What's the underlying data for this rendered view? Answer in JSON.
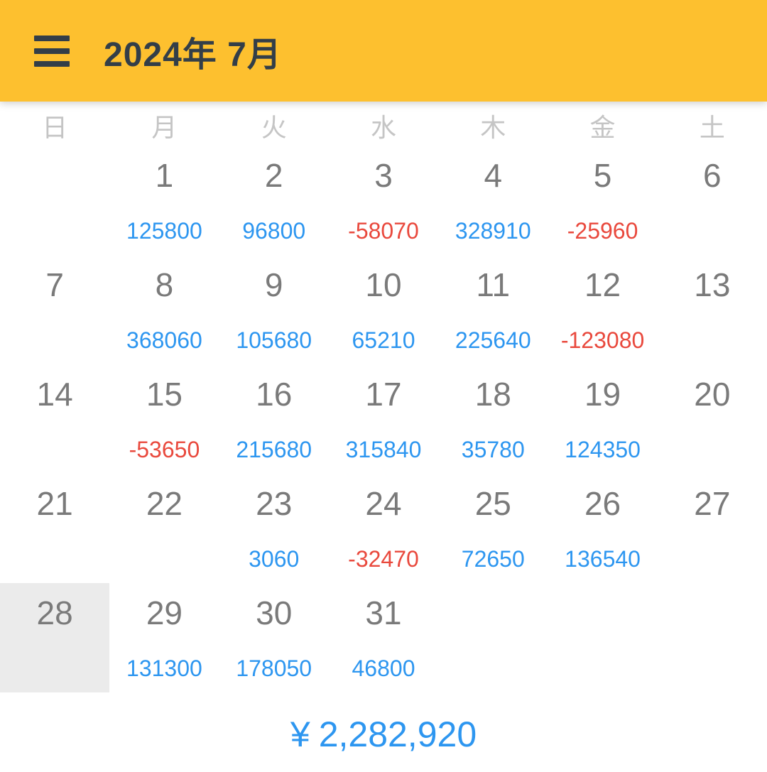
{
  "app_bar": {
    "title": "2024年 7月"
  },
  "weekday_headers": [
    "日",
    "月",
    "火",
    "水",
    "木",
    "金",
    "土"
  ],
  "weeks": [
    [
      {
        "day": ""
      },
      {
        "day": "1",
        "value": "125800",
        "sign": "positive"
      },
      {
        "day": "2",
        "value": "96800",
        "sign": "positive"
      },
      {
        "day": "3",
        "value": "-58070",
        "sign": "negative"
      },
      {
        "day": "4",
        "value": "328910",
        "sign": "positive"
      },
      {
        "day": "5",
        "value": "-25960",
        "sign": "negative"
      },
      {
        "day": "6"
      }
    ],
    [
      {
        "day": "7"
      },
      {
        "day": "8",
        "value": "368060",
        "sign": "positive"
      },
      {
        "day": "9",
        "value": "105680",
        "sign": "positive"
      },
      {
        "day": "10",
        "value": "65210",
        "sign": "positive"
      },
      {
        "day": "11",
        "value": "225640",
        "sign": "positive"
      },
      {
        "day": "12",
        "value": "-123080",
        "sign": "negative"
      },
      {
        "day": "13"
      }
    ],
    [
      {
        "day": "14"
      },
      {
        "day": "15",
        "value": "-53650",
        "sign": "negative"
      },
      {
        "day": "16",
        "value": "215680",
        "sign": "positive"
      },
      {
        "day": "17",
        "value": "315840",
        "sign": "positive"
      },
      {
        "day": "18",
        "value": "35780",
        "sign": "positive"
      },
      {
        "day": "19",
        "value": "124350",
        "sign": "positive"
      },
      {
        "day": "20"
      }
    ],
    [
      {
        "day": "21"
      },
      {
        "day": "22"
      },
      {
        "day": "23",
        "value": "3060",
        "sign": "positive"
      },
      {
        "day": "24",
        "value": "-32470",
        "sign": "negative"
      },
      {
        "day": "25",
        "value": "72650",
        "sign": "positive"
      },
      {
        "day": "26",
        "value": "136540",
        "sign": "positive"
      },
      {
        "day": "27"
      }
    ],
    [
      {
        "day": "28",
        "state": "selected"
      },
      {
        "day": "29",
        "value": "131300",
        "sign": "positive"
      },
      {
        "day": "30",
        "value": "178050",
        "sign": "positive"
      },
      {
        "day": "31",
        "value": "46800",
        "sign": "positive"
      },
      {
        "day": ""
      },
      {
        "day": ""
      },
      {
        "day": ""
      }
    ]
  ],
  "summary": {
    "currency_symbol": "¥",
    "total": "2,282,920"
  },
  "colors": {
    "appbar_yellow": "#FDC02F",
    "title_dark": "#333E48",
    "positive_blue": "#2D96F0",
    "negative_red": "#E9493D",
    "day_gray": "#7A7A7A",
    "weekday_gray": "#C5C5C5",
    "selected_cell_gray": "#EBEBEB"
  }
}
